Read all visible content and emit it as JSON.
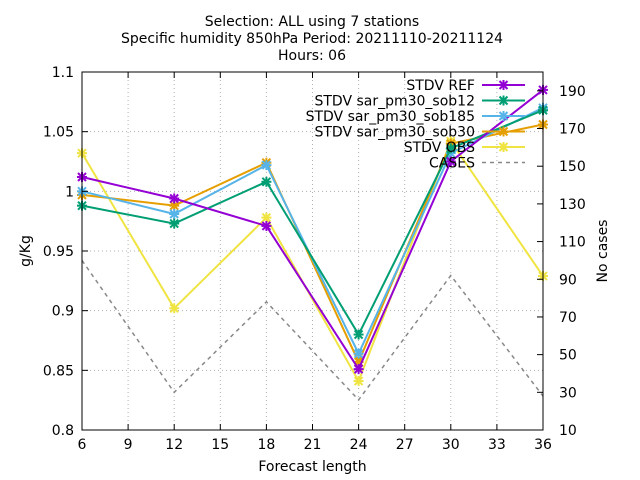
{
  "chart_data": {
    "type": "line",
    "title_lines": [
      "Selection: ALL using      7 stations",
      "Specific humidity 850hPa   Period: 20211110-20211124",
      "Hours: 06"
    ],
    "xlabel": "Forecast length",
    "ylabel": "g/Kg",
    "y2label": "No cases",
    "xlim": [
      6,
      36
    ],
    "ylim": [
      0.8,
      1.1
    ],
    "y2lim": [
      10,
      200
    ],
    "x_ticks": [
      "6",
      "9",
      "12",
      "15",
      "18",
      "21",
      "24",
      "27",
      "30",
      "33",
      "36"
    ],
    "y_ticks": [
      "0.8",
      "0.85",
      "0.9",
      "0.95",
      "1",
      "1.05",
      "1.1"
    ],
    "y2_ticks": [
      "10",
      "30",
      "50",
      "70",
      "90",
      "110",
      "130",
      "150",
      "170",
      "190"
    ],
    "grid": true,
    "legend_position": "top-right",
    "x": [
      6,
      12,
      18,
      24,
      30,
      36
    ],
    "series": [
      {
        "name": "STDV REF",
        "color": "#9400d3",
        "marker": "x",
        "axis": "y",
        "values": [
          1.012,
          0.994,
          0.971,
          0.851,
          1.025,
          1.085
        ]
      },
      {
        "name": "STDV sar_pm30_sob12",
        "color": "#009e73",
        "marker": "x",
        "axis": "y",
        "values": [
          0.988,
          0.973,
          1.008,
          0.88,
          1.036,
          1.068
        ]
      },
      {
        "name": "STDV sar_pm30_sob185",
        "color": "#56b4e9",
        "marker": "x",
        "axis": "y",
        "values": [
          1.0,
          0.981,
          1.022,
          0.864,
          1.032,
          1.07
        ]
      },
      {
        "name": "STDV sar_pm30_sob30",
        "color": "#e69f00",
        "marker": "x",
        "axis": "y",
        "values": [
          0.997,
          0.988,
          1.024,
          0.857,
          1.04,
          1.056
        ]
      },
      {
        "name": "STDV OBS",
        "color": "#f0e442",
        "marker": "x",
        "axis": "y",
        "values": [
          1.032,
          0.902,
          0.978,
          0.841,
          1.042,
          0.929
        ]
      },
      {
        "name": "CASES",
        "color": "#888888",
        "marker": "none",
        "dashed": true,
        "axis": "y2",
        "values": [
          100,
          30,
          78,
          26,
          92,
          28
        ]
      }
    ]
  }
}
